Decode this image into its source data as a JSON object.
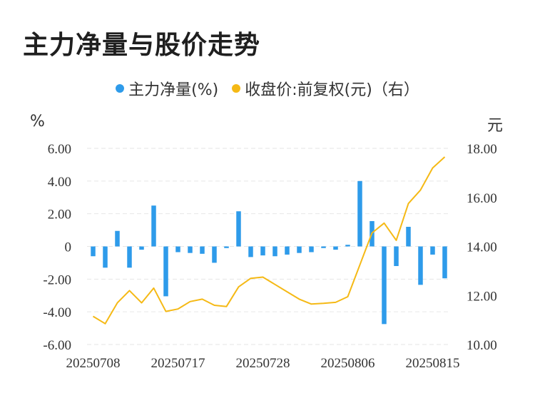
{
  "title": "主力净量与股价走势",
  "legend": {
    "bar_label": "主力净量(%)",
    "line_label": "收盘价:前复权(元)（右）"
  },
  "units": {
    "left": "%",
    "right": "元"
  },
  "colors": {
    "bar": "#2E9BEA",
    "line": "#F5B915",
    "grid": "#E6E6E6"
  },
  "chart_data": {
    "type": "bar+line",
    "x_tick_labels": [
      "20250708",
      "20250717",
      "20250728",
      "20250806",
      "20250815"
    ],
    "y_left": {
      "ticks": [
        "6.00",
        "4.00",
        "2.00",
        "0",
        "-2.00",
        "-4.00",
        "-6.00"
      ],
      "ylim": [
        -6,
        6
      ]
    },
    "y_right": {
      "ticks": [
        "18.00",
        "16.00",
        "14.00",
        "12.00",
        "10.00"
      ],
      "ylim": [
        10,
        18
      ]
    },
    "grid": true,
    "legend_position": "top",
    "series": [
      {
        "name": "主力净量(%)",
        "type": "bar",
        "values": [
          -0.6,
          -1.3,
          0.95,
          -1.3,
          -0.2,
          2.5,
          -3.05,
          -0.35,
          -0.4,
          -0.45,
          -1.0,
          -0.1,
          2.15,
          -0.65,
          -0.55,
          -0.6,
          -0.5,
          -0.4,
          -0.35,
          -0.1,
          -0.2,
          0.1,
          4.0,
          1.55,
          -4.75,
          -1.2,
          1.2,
          -2.35,
          -0.5,
          -1.95
        ]
      },
      {
        "name": "收盘价:前复权(元)（右）",
        "type": "line",
        "values": [
          11.15,
          10.85,
          11.7,
          12.2,
          11.7,
          12.3,
          11.35,
          11.45,
          11.75,
          11.85,
          11.6,
          11.55,
          12.35,
          12.7,
          12.75,
          12.45,
          12.15,
          11.85,
          11.65,
          11.68,
          11.72,
          11.95,
          13.25,
          14.55,
          14.95,
          14.25,
          15.75,
          16.3,
          17.2,
          17.65
        ]
      }
    ]
  }
}
